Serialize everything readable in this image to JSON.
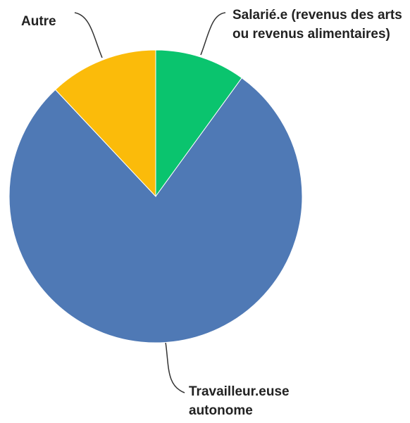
{
  "chart_data": {
    "type": "pie",
    "categories": [
      "Salarié.e (revenus des arts ou revenus alimentaires)",
      "Travailleur.euse autonome",
      "Autre"
    ],
    "values": [
      10,
      78,
      12
    ],
    "colors": [
      "#0ac46e",
      "#4f79b5",
      "#fbbb0a"
    ]
  }
}
